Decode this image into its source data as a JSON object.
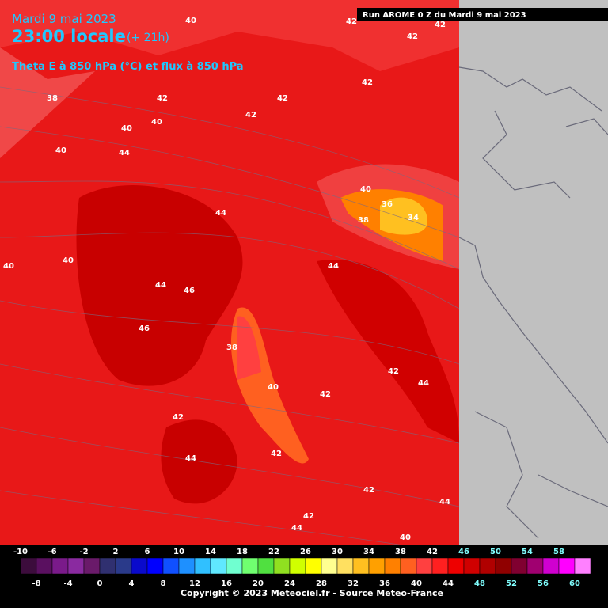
{
  "header": {
    "date": "Mardi 9 mai 2023",
    "time": "23:00 locale",
    "lead": "(+ 21h)",
    "parameter": "Theta E à 850 hPa (°C) et flux à 850 hPa",
    "run": "Run AROME 0 Z du Mardi 9 mai 2023"
  },
  "contour_labels": [
    40,
    42,
    42,
    42,
    42,
    38,
    42,
    42,
    40,
    42,
    40,
    44,
    40,
    40,
    36,
    38,
    34,
    44,
    40,
    40,
    44,
    44,
    46,
    46,
    38,
    42,
    44,
    40,
    42,
    42,
    44,
    42,
    42,
    44,
    42,
    44,
    40
  ],
  "legend": {
    "ticks": [
      -10,
      -8,
      -6,
      -4,
      -2,
      0,
      2,
      4,
      6,
      8,
      10,
      12,
      14,
      16,
      18,
      20,
      22,
      24,
      26,
      28,
      30,
      32,
      34,
      36,
      38,
      40,
      42,
      44,
      46,
      48,
      50,
      52,
      54,
      56,
      58,
      60
    ],
    "colors": [
      "#3c0c3c",
      "#5a1060",
      "#7a1a8a",
      "#8a2aa0",
      "#6a1a6a",
      "#303070",
      "#2a3a8a",
      "#0a0acc",
      "#0000ff",
      "#1050ff",
      "#1e90ff",
      "#30c0ff",
      "#60e8ff",
      "#70ffd0",
      "#70ff70",
      "#50e040",
      "#90e020",
      "#d0ff00",
      "#ffff00",
      "#ffff90",
      "#ffe060",
      "#ffc020",
      "#ffa000",
      "#ff8000",
      "#ff6020",
      "#ff4040",
      "#ff2020",
      "#ee0000",
      "#d00000",
      "#b00000",
      "#900000",
      "#800030",
      "#a00070",
      "#d000d0",
      "#ff00ff",
      "#ff80ff"
    ]
  },
  "footer": {
    "copyright": "Copyright © 2023 Meteociel.fr - Source Meteo-France"
  }
}
